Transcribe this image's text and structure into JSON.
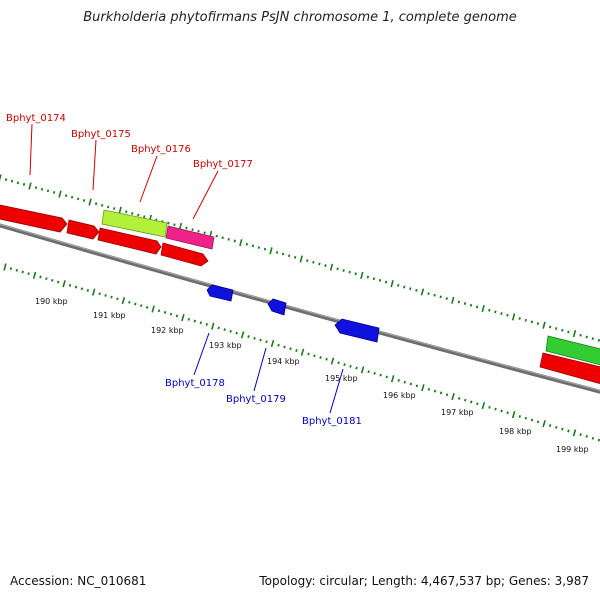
{
  "title": "Burkholderia phytofirmans PsJN chromosome 1, complete genome",
  "footer": {
    "accession": "Accession: NC_010681",
    "summary": "Topology: circular; Length: 4,467,537 bp; Genes: 3,987"
  },
  "colors": {
    "backbone": "#7a7a7a",
    "forward_label": "#cc0000",
    "reverse_label": "#0000bb",
    "tick": "#1a7a1a",
    "red_gene": "#ee0000",
    "lime_gene": "#b3f03a",
    "magenta_gene": "#ee2288",
    "green_gene": "#33cc33",
    "blue_gene": "#1111dd"
  },
  "forward_gene_labels": [
    "Bphyt_0174",
    "Bphyt_0175",
    "Bphyt_0176",
    "Bphyt_0177"
  ],
  "reverse_gene_labels": [
    "Bphyt_0178",
    "Bphyt_0179",
    "Bphyt_0181"
  ],
  "scale_labels": [
    "190 kbp",
    "191 kbp",
    "192 kbp",
    "193 kbp",
    "194 kbp",
    "195 kbp",
    "196 kbp",
    "197 kbp",
    "198 kbp",
    "199 kbp"
  ]
}
